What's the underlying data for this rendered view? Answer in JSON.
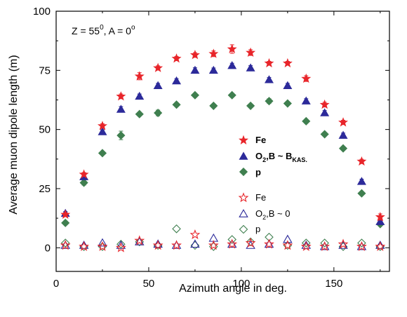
{
  "chart_data": {
    "type": "scatter",
    "annotation": {
      "main": "Z = 55",
      "sup1": "0",
      "mid": ", A = 0",
      "sup2": "o"
    },
    "xlabel": "Azimuth angle in deg.",
    "ylabel": "Average muon dipole length (m)",
    "xlim": [
      0,
      180
    ],
    "ylim": [
      -10,
      100
    ],
    "x_ticks": [
      0,
      50,
      100,
      150
    ],
    "y_ticks": [
      0,
      25,
      50,
      75,
      100
    ],
    "grid": false,
    "legend_placement": "center-right",
    "colors": {
      "fe": "#e8252a",
      "o2b": "#2c2a9a",
      "p": "#3f7f4f"
    },
    "series": [
      {
        "name": "Fe",
        "marker": "star-filled",
        "color": "#e8252a",
        "x": [
          5,
          15,
          25,
          35,
          45,
          55,
          65,
          75,
          85,
          95,
          105,
          115,
          125,
          135,
          145,
          155,
          165,
          175
        ],
        "y": [
          14,
          31,
          51.5,
          64,
          72.5,
          76,
          80,
          81.5,
          82,
          84,
          82.5,
          78,
          78,
          71.5,
          60.5,
          53,
          36.5,
          13
        ],
        "err": [
          0.8,
          0.8,
          0.9,
          1.0,
          1.5,
          0.9,
          0.9,
          1.0,
          1.2,
          1.8,
          1.2,
          0.8,
          0.8,
          1.2,
          1.0,
          0.9,
          0.9,
          1.3
        ]
      },
      {
        "name_parts": {
          "o": "O",
          "sub1": "2",
          "mid": ",B ~ B",
          "sub2": "KAS."
        },
        "marker": "triangle-filled",
        "color": "#2c2a9a",
        "x": [
          5,
          15,
          25,
          35,
          45,
          55,
          65,
          75,
          85,
          95,
          105,
          115,
          125,
          135,
          145,
          155,
          165,
          175
        ],
        "y": [
          14.5,
          30,
          49,
          58.5,
          64,
          68.5,
          70.5,
          75,
          75,
          77,
          76,
          71,
          68.5,
          62,
          57,
          47.5,
          28,
          11
        ],
        "err": [
          0.8,
          1.0,
          0.9,
          1.2,
          1.0,
          1.0,
          1.0,
          1.1,
          1.0,
          1.0,
          1.0,
          1.0,
          1.0,
          1.0,
          1.0,
          1.0,
          1.0,
          1.0
        ]
      },
      {
        "name": "p",
        "marker": "diamond-filled",
        "color": "#3f7f4f",
        "x": [
          5,
          15,
          25,
          35,
          45,
          55,
          65,
          75,
          85,
          95,
          105,
          115,
          125,
          135,
          145,
          155,
          165,
          175
        ],
        "y": [
          10.5,
          27.5,
          40,
          47.5,
          56.5,
          57,
          60.5,
          64.5,
          60,
          64.5,
          60,
          62,
          61,
          53.5,
          48,
          42,
          23,
          10
        ],
        "err": [
          0.8,
          1.0,
          0.7,
          1.8,
          0.7,
          1.2,
          0.7,
          0.8,
          0.7,
          0.8,
          0.7,
          1.0,
          0.7,
          0.8,
          0.7,
          0.7,
          0.7,
          0.8
        ]
      },
      {
        "name": "Fe",
        "marker": "star-open",
        "color": "#e8252a",
        "x": [
          5,
          15,
          25,
          35,
          45,
          55,
          65,
          75,
          85,
          95,
          105,
          115,
          125,
          135,
          145,
          155,
          165,
          175
        ],
        "y": [
          1,
          0.5,
          0.5,
          0,
          3,
          1,
          1,
          5.5,
          1,
          1.5,
          2,
          1.5,
          1,
          0.5,
          0.5,
          1.5,
          0.5,
          0.5
        ]
      },
      {
        "name_parts": {
          "o": "O",
          "sub1": "2",
          "mid": ",B ~ 0"
        },
        "marker": "triangle-open",
        "color": "#2c2a9a",
        "x": [
          5,
          15,
          25,
          35,
          45,
          55,
          65,
          75,
          85,
          95,
          105,
          115,
          125,
          135,
          145,
          155,
          165,
          175
        ],
        "y": [
          1,
          1,
          2,
          1,
          2.5,
          1.5,
          1,
          1.5,
          4,
          1.5,
          1,
          1.5,
          3.5,
          1,
          0.5,
          1,
          0.5,
          1
        ]
      },
      {
        "name": "p",
        "marker": "diamond-open",
        "color": "#3f7f4f",
        "x": [
          5,
          15,
          25,
          35,
          45,
          55,
          65,
          75,
          85,
          95,
          105,
          115,
          125,
          135,
          145,
          155,
          165,
          175
        ],
        "y": [
          2,
          0.5,
          0.5,
          1.5,
          2.5,
          1,
          8,
          1,
          0.5,
          3.5,
          2.5,
          4.5,
          1,
          2,
          2,
          0.5,
          2,
          0.5
        ]
      }
    ]
  }
}
